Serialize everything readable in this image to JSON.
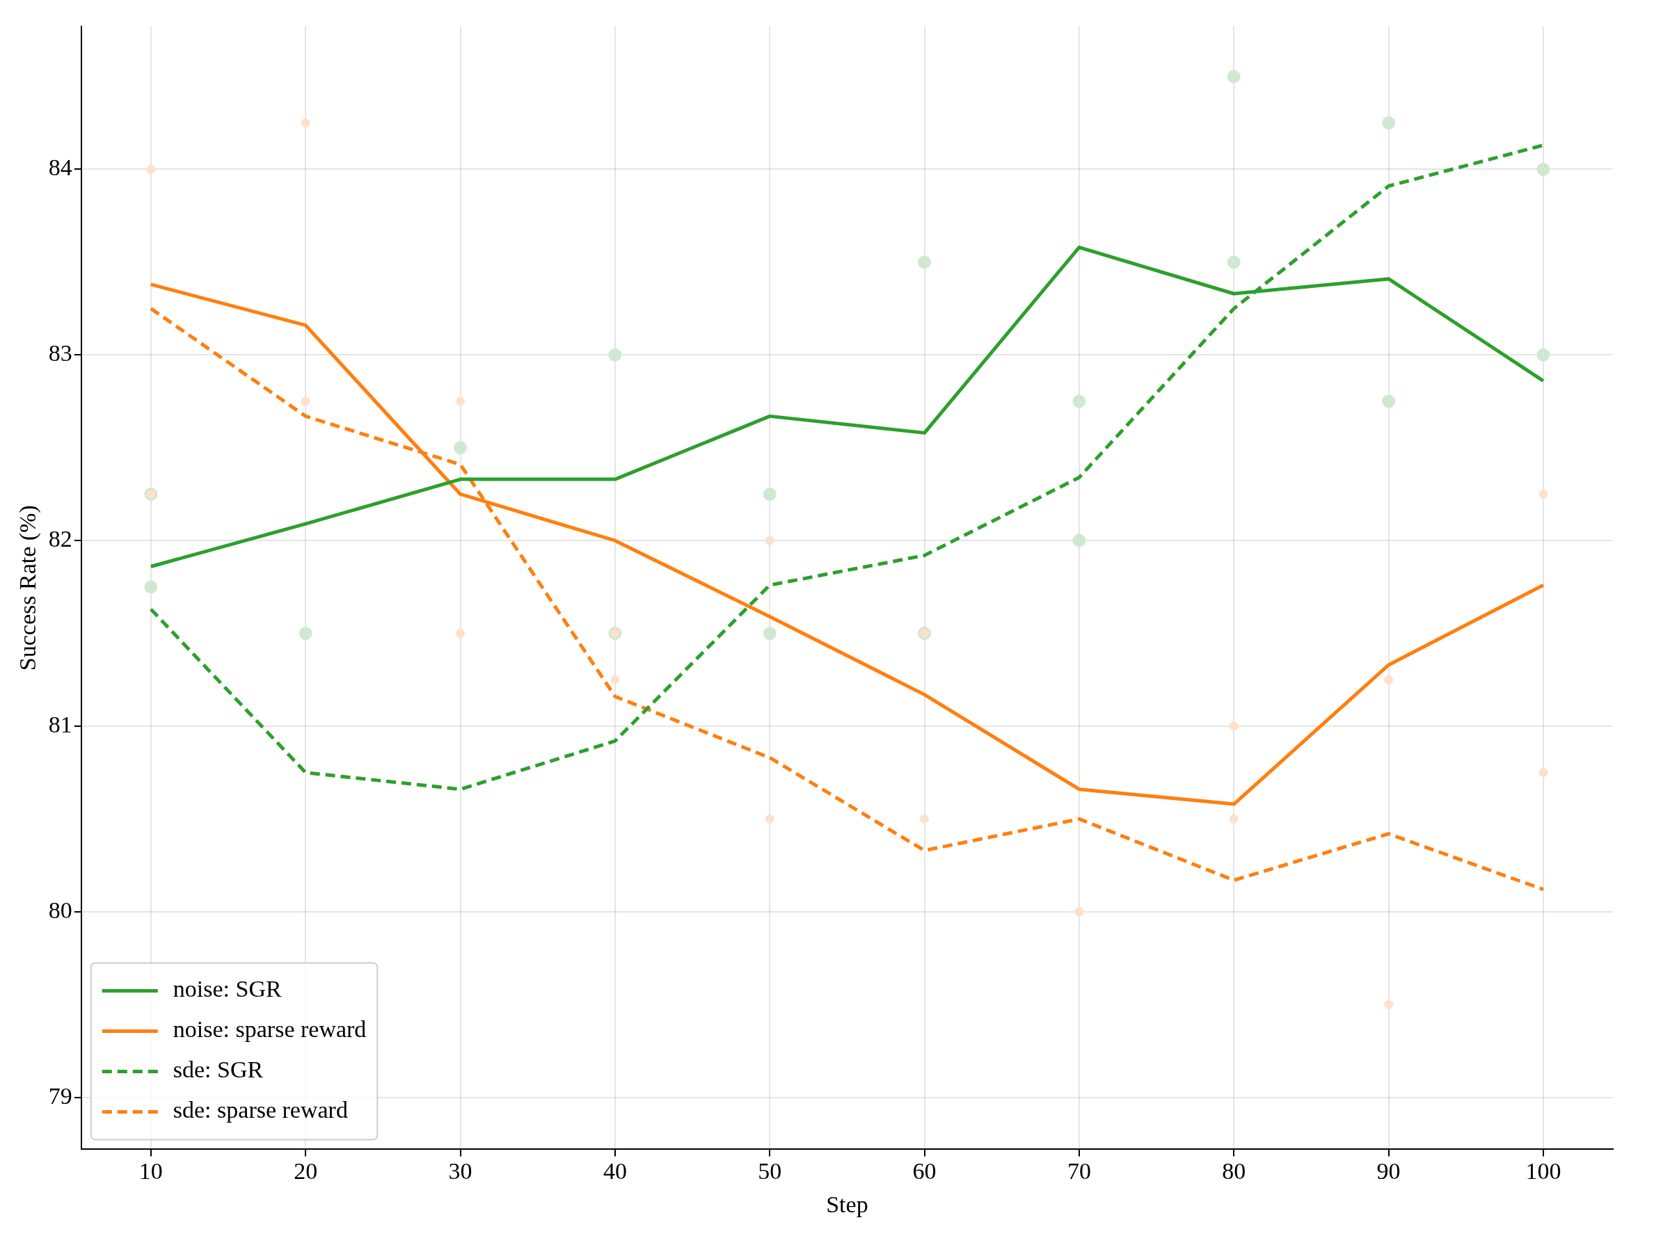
{
  "chart_data": {
    "type": "line",
    "xlabel": "Step",
    "ylabel": "Success Rate (%)",
    "x": [
      10,
      20,
      30,
      40,
      50,
      60,
      70,
      80,
      90,
      100
    ],
    "xlim": [
      5.5,
      104.5
    ],
    "xticks": [
      10,
      20,
      30,
      40,
      50,
      60,
      70,
      80,
      90,
      100
    ],
    "ylim": [
      78.72,
      84.77
    ],
    "yticks": [
      79,
      80,
      81,
      82,
      83,
      84
    ],
    "grid": true,
    "legend": "bottom left",
    "series": [
      {
        "type": "scatter",
        "marker": "circle",
        "color": "#cfe8cf",
        "x": [
          10,
          10,
          20,
          30,
          40,
          40,
          50,
          50,
          60,
          60,
          70,
          70,
          80,
          80,
          90,
          90,
          100,
          100
        ],
        "values": [
          82.25,
          81.75,
          81.5,
          82.5,
          83,
          81.5,
          82.25,
          81.5,
          83.5,
          81.5,
          82.75,
          82,
          84.5,
          83.5,
          84.25,
          82.75,
          84,
          83
        ]
      },
      {
        "type": "scatter",
        "marker": "circle",
        "color": "#ffe0c8",
        "x": [
          10,
          10,
          20,
          20,
          30,
          30,
          40,
          40,
          50,
          50,
          60,
          60,
          70,
          80,
          80,
          90,
          90,
          100,
          100
        ],
        "values": [
          84,
          82.25,
          84.25,
          82.75,
          82.75,
          81.5,
          81.5,
          81.25,
          82,
          80.5,
          81.5,
          80.5,
          80,
          81,
          80.5,
          81.25,
          79.5,
          82.25,
          80.75
        ]
      },
      {
        "name": "noise: SGR",
        "line_style": "solid",
        "color": "#2ca02c",
        "values": [
          81.86,
          82.09,
          82.33,
          82.33,
          82.67,
          82.58,
          83.58,
          83.33,
          83.41,
          82.86
        ]
      },
      {
        "name": "noise: sparse reward",
        "line_style": "solid",
        "color": "#ff7f0e",
        "values": [
          83.38,
          83.16,
          82.25,
          82.0,
          81.59,
          81.17,
          80.66,
          80.58,
          81.33,
          81.76
        ]
      },
      {
        "name": "sde: SGR",
        "line_style": "dashed",
        "color": "#2ca02c",
        "values": [
          81.63,
          80.75,
          80.66,
          80.92,
          81.76,
          81.92,
          82.34,
          83.25,
          83.91,
          84.13
        ]
      },
      {
        "name": "sde: sparse reward",
        "line_style": "dashed",
        "color": "#ff7f0e",
        "values": [
          83.25,
          82.67,
          82.41,
          81.16,
          80.83,
          80.33,
          80.5,
          80.17,
          80.42,
          80.12
        ]
      }
    ]
  }
}
